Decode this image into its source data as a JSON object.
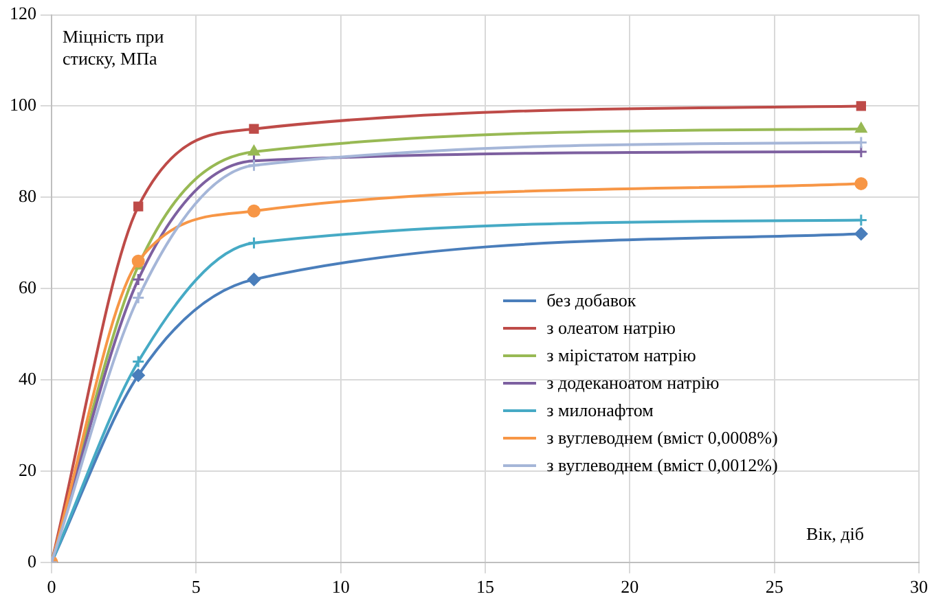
{
  "chart_data": {
    "type": "line",
    "xlabel": "Вік, діб",
    "ylabel": "Міцність при стиску, МПа",
    "xlim": [
      0,
      30
    ],
    "xticks": [
      0,
      5,
      10,
      15,
      20,
      25,
      30
    ],
    "ylim": [
      0,
      120
    ],
    "yticks": [
      0,
      20,
      40,
      60,
      80,
      100,
      120
    ],
    "grid": true,
    "legend": "bottom right",
    "x": [
      0,
      3,
      7,
      28
    ],
    "series": [
      {
        "name": "без добавок",
        "color": "#4a7ebb",
        "marker": "diamond",
        "values": [
          0,
          41,
          62,
          72
        ]
      },
      {
        "name": "з олеатом натрію",
        "color": "#be4b48",
        "marker": "square",
        "values": [
          0,
          78,
          95,
          100
        ]
      },
      {
        "name": "з мірістатом натрію",
        "color": "#98b954",
        "marker": "triangle",
        "values": [
          0,
          65,
          90,
          95
        ]
      },
      {
        "name": "з додеканоатом натрію",
        "color": "#7d60a0",
        "marker": "cross",
        "values": [
          0,
          62,
          88,
          90
        ]
      },
      {
        "name": "з милонафтом",
        "color": "#46aac5",
        "marker": "cross",
        "values": [
          0,
          44,
          70,
          75
        ]
      },
      {
        "name": "з вуглеводнем (вміст 0,0008%)",
        "color": "#f79646",
        "marker": "circle",
        "values": [
          0,
          66,
          77,
          83
        ]
      },
      {
        "name": "з вуглеводнем (вміст 0,0012%)",
        "color": "#a5b6d8",
        "marker": "cross",
        "values": [
          0,
          58,
          87,
          92
        ]
      }
    ]
  }
}
